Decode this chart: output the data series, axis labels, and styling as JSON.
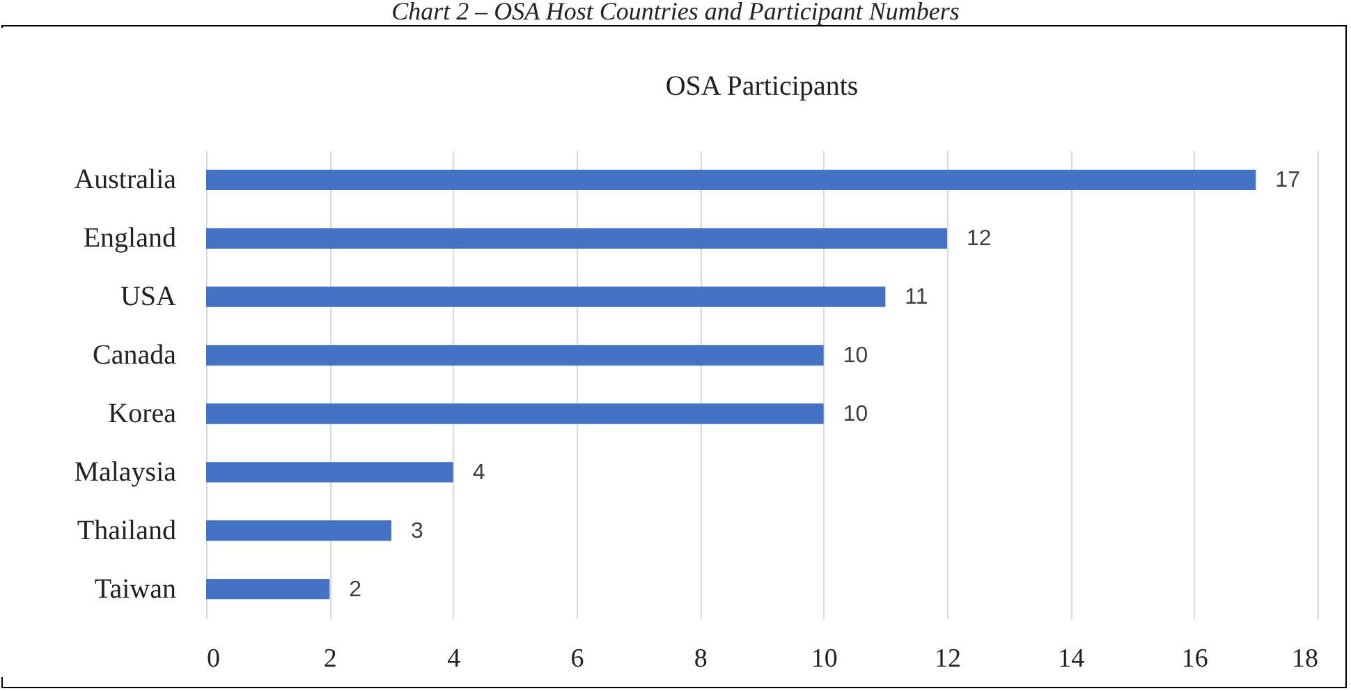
{
  "chart_data": {
    "type": "bar",
    "orientation": "horizontal",
    "title": "OSA Participants",
    "annotations": [
      "Chart 2 – OSA Host Countries and Participant Numbers"
    ],
    "categories": [
      "Australia",
      "England",
      "USA",
      "Canada",
      "Korea",
      "Malaysia",
      "Thailand",
      "Taiwan"
    ],
    "values": [
      17,
      12,
      11,
      10,
      10,
      4,
      3,
      2
    ],
    "color": "#4472c4",
    "xlim": [
      0,
      18
    ],
    "xticks": [
      0,
      2,
      4,
      6,
      8,
      10,
      12,
      14,
      16,
      18
    ],
    "grid": "x",
    "data_labels": true
  }
}
